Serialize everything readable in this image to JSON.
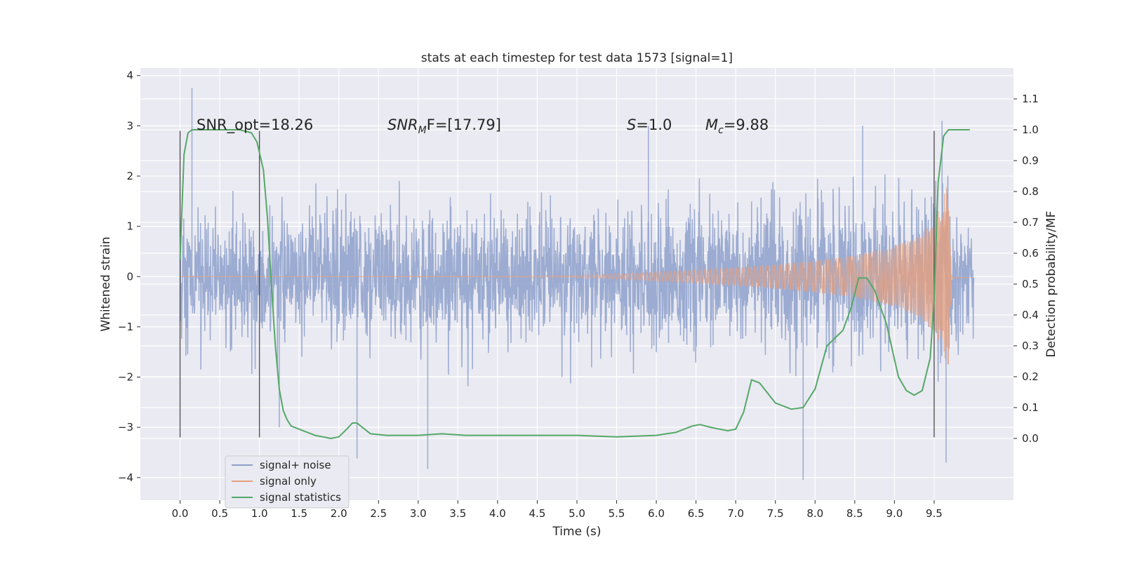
{
  "chart_data": {
    "type": "line",
    "title": "stats at each timestep for test data 1573 [signal=1]",
    "xlabel": "Time (s)",
    "ylabel": "Whitened strain",
    "ylabel_right": "Detection probability/MF",
    "xlim": [
      -0.5,
      10.5
    ],
    "ylim": [
      -4.45,
      4.15
    ],
    "ylim_right": [
      -0.2,
      1.2
    ],
    "x_ticks": [
      "0.0",
      "0.5",
      "1.0",
      "1.5",
      "2.0",
      "2.5",
      "3.0",
      "3.5",
      "4.0",
      "4.5",
      "5.0",
      "5.5",
      "6.0",
      "6.5",
      "7.0",
      "7.5",
      "8.0",
      "8.5",
      "9.0",
      "9.5"
    ],
    "y_ticks": [
      "-4",
      "-3",
      "-2",
      "-1",
      "0",
      "1",
      "2",
      "3",
      "4"
    ],
    "y_right_ticks": [
      "0.0",
      "0.1",
      "0.2",
      "0.3",
      "0.4",
      "0.5",
      "0.6",
      "0.7",
      "0.8",
      "0.9",
      "1.0",
      "1.1"
    ],
    "grid": true,
    "legend_position": "lower-left",
    "annotations": {
      "snr_opt": "SNR_opt=18.26",
      "snr_mf_base": "SNR",
      "snr_mf_sub": "M",
      "snr_mf_rest": "F=[17.79]",
      "s_label": "S",
      "s_value": "=1.0",
      "mc_base": "M",
      "mc_sub": "c",
      "mc_value": "=9.88"
    },
    "vertical_markers": {
      "x": [
        0.0,
        1.0,
        9.5
      ],
      "y_range": [
        -3.2,
        2.9
      ]
    },
    "series": [
      {
        "name": "signal+ noise",
        "color": "#8da0cb",
        "description_envelope": {
          "x": [
            0.0,
            0.5,
            1.0,
            2.0,
            3.0,
            4.0,
            5.0,
            6.0,
            7.0,
            8.0,
            9.0,
            9.5,
            9.7,
            9.95
          ],
          "typical_amplitude": [
            1.1,
            1.1,
            1.1,
            1.1,
            1.1,
            1.1,
            1.1,
            1.15,
            1.2,
            1.25,
            1.35,
            1.5,
            1.5,
            1.1
          ],
          "spikes": [
            [
              0.15,
              3.75
            ],
            [
              1.25,
              -3.0
            ],
            [
              2.23,
              -3.62
            ],
            [
              3.12,
              -3.83
            ],
            [
              5.9,
              3.0
            ],
            [
              7.85,
              -4.05
            ],
            [
              9.6,
              3.1
            ],
            [
              9.65,
              -3.7
            ],
            [
              8.6,
              3.0
            ]
          ]
        }
      },
      {
        "name": "signal only",
        "color": "#e5a07f",
        "envelope": {
          "x": [
            0.0,
            2.0,
            4.0,
            5.0,
            5.5,
            6.0,
            6.5,
            7.0,
            7.5,
            8.0,
            8.5,
            9.0,
            9.3,
            9.5,
            9.6,
            9.68,
            9.72,
            9.8,
            9.95
          ],
          "amplitude": [
            0.0,
            0.0,
            0.01,
            0.02,
            0.05,
            0.09,
            0.13,
            0.18,
            0.24,
            0.32,
            0.42,
            0.6,
            0.8,
            1.1,
            1.5,
            1.9,
            0.05,
            0.03,
            0.02
          ]
        }
      },
      {
        "name": "signal statistics",
        "color": "#55a868",
        "axis": "right",
        "x": [
          0.0,
          0.05,
          0.1,
          0.15,
          0.25,
          0.5,
          0.75,
          0.9,
          0.97,
          1.05,
          1.1,
          1.15,
          1.2,
          1.25,
          1.3,
          1.35,
          1.4,
          1.5,
          1.7,
          1.9,
          2.0,
          2.1,
          2.17,
          2.23,
          2.3,
          2.4,
          2.6,
          3.0,
          3.3,
          3.6,
          4.0,
          4.6,
          5.0,
          5.5,
          6.0,
          6.25,
          6.45,
          6.55,
          6.7,
          6.8,
          6.9,
          7.0,
          7.1,
          7.2,
          7.3,
          7.5,
          7.7,
          7.85,
          8.0,
          8.15,
          8.35,
          8.45,
          8.55,
          8.65,
          8.75,
          8.9,
          9.05,
          9.15,
          9.25,
          9.35,
          9.45,
          9.5,
          9.55,
          9.62,
          9.68,
          9.75,
          9.95
        ],
        "values": [
          0.58,
          0.92,
          0.99,
          1.0,
          1.0,
          1.0,
          1.0,
          0.99,
          0.96,
          0.87,
          0.72,
          0.5,
          0.3,
          0.16,
          0.09,
          0.06,
          0.04,
          0.03,
          0.01,
          0.0,
          0.005,
          0.03,
          0.05,
          0.05,
          0.035,
          0.015,
          0.01,
          0.01,
          0.015,
          0.01,
          0.01,
          0.01,
          0.01,
          0.005,
          0.01,
          0.02,
          0.04,
          0.045,
          0.035,
          0.03,
          0.025,
          0.03,
          0.085,
          0.19,
          0.18,
          0.115,
          0.095,
          0.1,
          0.16,
          0.3,
          0.35,
          0.42,
          0.52,
          0.52,
          0.48,
          0.37,
          0.2,
          0.155,
          0.14,
          0.155,
          0.26,
          0.45,
          0.83,
          0.98,
          1.0,
          1.0,
          1.0
        ]
      }
    ]
  }
}
